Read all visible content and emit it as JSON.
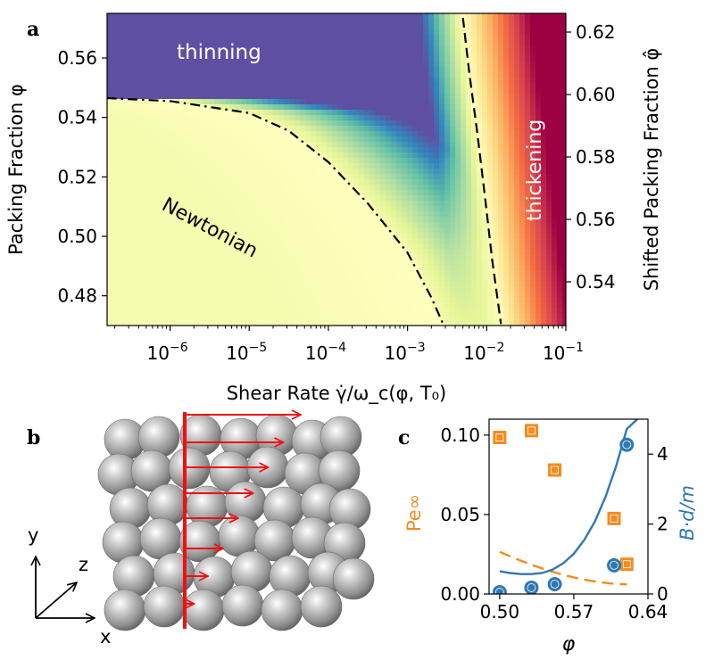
{
  "figure": {
    "panel_a_label": "a",
    "panel_b_label": "b",
    "panel_c_label": "c"
  },
  "chart_data": [
    {
      "type": "heatmap",
      "panel": "a",
      "xlabel": "Shear Rate γ̇/ω_c(φ, T₀)",
      "ylabel": "Packing Fraction φ",
      "y2label": "Shifted Packing Fraction φ̂",
      "xscale": "log",
      "xlim": [
        1.6e-07,
        0.1
      ],
      "ylim": [
        0.47,
        0.575
      ],
      "y2lim": [
        0.526,
        0.626
      ],
      "x_ticks": [
        {
          "value": -6,
          "base": "10",
          "exp": "−6"
        },
        {
          "value": -5,
          "base": "10",
          "exp": "−5"
        },
        {
          "value": -4,
          "base": "10",
          "exp": "−4"
        },
        {
          "value": -3,
          "base": "10",
          "exp": "−3"
        },
        {
          "value": -2,
          "base": "10",
          "exp": "−2"
        },
        {
          "value": -1,
          "base": "10",
          "exp": "−1"
        }
      ],
      "y_ticks": [
        0.48,
        0.5,
        0.52,
        0.54,
        0.56
      ],
      "y_tick_labels": [
        "0.48",
        "0.50",
        "0.52",
        "0.54",
        "0.56"
      ],
      "y2_ticks": [
        0.54,
        0.56,
        0.58,
        0.6,
        0.62
      ],
      "y2_tick_labels": [
        "0.54",
        "0.56",
        "0.58",
        "0.60",
        "0.62"
      ],
      "region_labels": {
        "thinning": "thinning",
        "newtonian": "Newtonian",
        "thickening": "thickening"
      },
      "colormap": [
        "#5e4fa2",
        "#3288bd",
        "#66c2a5",
        "#abdda4",
        "#e6f598",
        "#ffffbf",
        "#fee08b",
        "#fdae61",
        "#f46d43",
        "#d53e4f",
        "#9e0142"
      ],
      "newtonian_boundary": {
        "style": "dash-dot",
        "points": [
          [
            -6.8,
            0.5465
          ],
          [
            -6.0,
            0.5455
          ],
          [
            -5.0,
            0.5415
          ],
          [
            -4.5,
            0.5355
          ],
          [
            -4.0,
            0.525
          ],
          [
            -3.5,
            0.511
          ],
          [
            -3.0,
            0.4945
          ],
          [
            -2.7,
            0.4795
          ],
          [
            -2.55,
            0.4705
          ]
        ]
      },
      "thickening_boundary": {
        "style": "dashed",
        "points": [
          [
            -2.3,
            0.5735
          ],
          [
            -2.22,
            0.555
          ],
          [
            -2.12,
            0.535
          ],
          [
            -2.02,
            0.513
          ],
          [
            -1.93,
            0.492
          ],
          [
            -1.82,
            0.4705
          ]
        ]
      }
    },
    {
      "type": "scatter",
      "panel": "c",
      "xlabel": "φ",
      "ylabel": "Pe∞",
      "y2label": "B·d/m",
      "xlim": [
        0.49,
        0.64
      ],
      "ylim": [
        0,
        0.11
      ],
      "y2lim": [
        0,
        5.0
      ],
      "x_ticks": [
        0.5,
        0.57,
        0.64
      ],
      "x_tick_labels": [
        "0.50",
        "0.57",
        "0.64"
      ],
      "y_ticks": [
        0.0,
        0.05,
        0.1
      ],
      "y_tick_labels": [
        "0.00",
        "0.05",
        "0.10"
      ],
      "y2_ticks": [
        0,
        2,
        4
      ],
      "y2_tick_labels": [
        "0",
        "2",
        "4"
      ],
      "series": [
        {
          "name": "Pe∞",
          "axis": "left",
          "color": "#f58b1f",
          "marker": "square",
          "x": [
            0.5,
            0.53,
            0.552,
            0.608,
            0.62
          ],
          "y": [
            0.0985,
            0.1028,
            0.078,
            0.0475,
            0.0187
          ]
        },
        {
          "name": "B·d/m",
          "axis": "right",
          "color": "#2f78b4",
          "marker": "circle",
          "x": [
            0.5,
            0.53,
            0.552,
            0.608,
            0.62
          ],
          "y": [
            0.05,
            0.18,
            0.28,
            0.82,
            4.27
          ]
        },
        {
          "name": "Pe∞ fit",
          "axis": "left",
          "color": "#f58b1f",
          "style": "dashed",
          "x": [
            0.5,
            0.515,
            0.53,
            0.545,
            0.56,
            0.575,
            0.59,
            0.605,
            0.62
          ],
          "y": [
            0.0265,
            0.0222,
            0.0184,
            0.015,
            0.012,
            0.0096,
            0.0078,
            0.0066,
            0.006
          ]
        },
        {
          "name": "B·d/m fit",
          "axis": "right",
          "color": "#2f78b4",
          "style": "solid",
          "x": [
            0.5,
            0.51,
            0.52,
            0.53,
            0.54,
            0.55,
            0.56,
            0.57,
            0.58,
            0.59,
            0.6,
            0.61,
            0.62,
            0.63
          ],
          "y": [
            0.65,
            0.6,
            0.57,
            0.57,
            0.6,
            0.7,
            0.88,
            1.15,
            1.55,
            2.08,
            2.78,
            3.66,
            4.72,
            5.0
          ]
        }
      ]
    }
  ],
  "panel_b": {
    "axis_labels": {
      "x": "x",
      "y": "y",
      "z": "z"
    },
    "colors": {
      "particle": "#9b9b9b",
      "velocity_arrows": "#ee1111"
    },
    "velocity_profile_lengths": [
      1.0,
      0.85,
      0.72,
      0.59,
      0.46,
      0.33,
      0.2,
      0.08
    ]
  }
}
